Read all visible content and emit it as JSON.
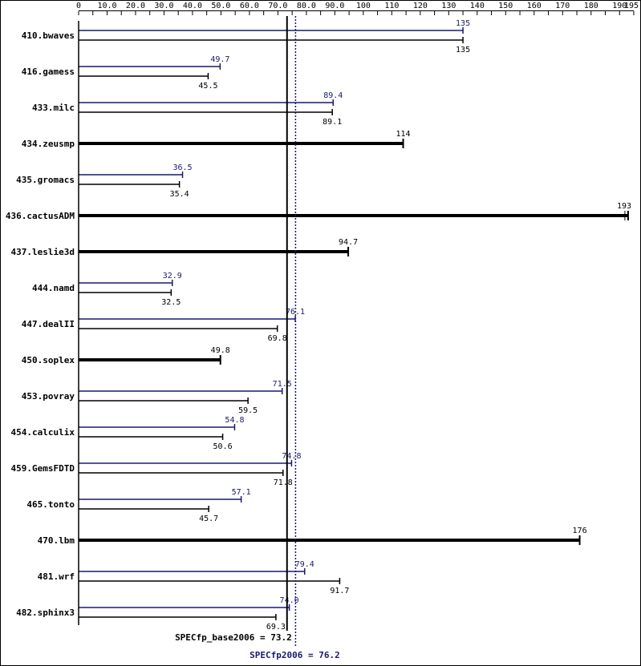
{
  "chart_data": {
    "type": "bar",
    "orientation": "horizontal",
    "xlim": [
      0,
      195
    ],
    "ticks": [
      {
        "v": 0,
        "label": "0"
      },
      {
        "v": 10,
        "label": "10.0"
      },
      {
        "v": 20,
        "label": "20.0"
      },
      {
        "v": 30,
        "label": "30.0"
      },
      {
        "v": 40,
        "label": "40.0"
      },
      {
        "v": 50,
        "label": "50.0"
      },
      {
        "v": 60,
        "label": "60.0"
      },
      {
        "v": 70,
        "label": "70.0"
      },
      {
        "v": 80,
        "label": "80.0"
      },
      {
        "v": 90,
        "label": "90.0"
      },
      {
        "v": 100,
        "label": "100"
      },
      {
        "v": 110,
        "label": "110"
      },
      {
        "v": 120,
        "label": "120"
      },
      {
        "v": 130,
        "label": "130"
      },
      {
        "v": 140,
        "label": "140"
      },
      {
        "v": 150,
        "label": "150"
      },
      {
        "v": 160,
        "label": "160"
      },
      {
        "v": 170,
        "label": "170"
      },
      {
        "v": 180,
        "label": "180"
      },
      {
        "v": 190,
        "label": "190"
      },
      {
        "v": 195,
        "label": "195"
      }
    ],
    "benchmarks": [
      {
        "name": "410.bwaves",
        "peak": 135,
        "peak_label": "135",
        "base": 135,
        "base_label": "135"
      },
      {
        "name": "416.gamess",
        "peak": 49.7,
        "peak_label": "49.7",
        "base": 45.5,
        "base_label": "45.5"
      },
      {
        "name": "433.milc",
        "peak": 89.4,
        "peak_label": "89.4",
        "base": 89.1,
        "base_label": "89.1"
      },
      {
        "name": "434.zeusmp",
        "peak": null,
        "peak_label": "",
        "base": 114,
        "base_label": "114"
      },
      {
        "name": "435.gromacs",
        "peak": 36.5,
        "peak_label": "36.5",
        "base": 35.4,
        "base_label": "35.4"
      },
      {
        "name": "436.cactusADM",
        "peak": null,
        "peak_label": "",
        "base": 193,
        "base_label": "193"
      },
      {
        "name": "437.leslie3d",
        "peak": null,
        "peak_label": "",
        "base": 94.7,
        "base_label": "94.7"
      },
      {
        "name": "444.namd",
        "peak": 32.9,
        "peak_label": "32.9",
        "base": 32.5,
        "base_label": "32.5"
      },
      {
        "name": "447.dealII",
        "peak": 76.1,
        "peak_label": "76.1",
        "base": 69.8,
        "base_label": "69.8"
      },
      {
        "name": "450.soplex",
        "peak": null,
        "peak_label": "",
        "base": 49.8,
        "base_label": "49.8"
      },
      {
        "name": "453.povray",
        "peak": 71.5,
        "peak_label": "71.5",
        "base": 59.5,
        "base_label": "59.5"
      },
      {
        "name": "454.calculix",
        "peak": 54.8,
        "peak_label": "54.8",
        "base": 50.6,
        "base_label": "50.6"
      },
      {
        "name": "459.GemsFDTD",
        "peak": 74.8,
        "peak_label": "74.8",
        "base": 71.8,
        "base_label": "71.8"
      },
      {
        "name": "465.tonto",
        "peak": 57.1,
        "peak_label": "57.1",
        "base": 45.7,
        "base_label": "45.7"
      },
      {
        "name": "470.lbm",
        "peak": null,
        "peak_label": "",
        "base": 176,
        "base_label": "176"
      },
      {
        "name": "481.wrf",
        "peak": 79.4,
        "peak_label": "79.4",
        "base": 91.7,
        "base_label": "91.7"
      },
      {
        "name": "482.sphinx3",
        "peak": 74.0,
        "peak_label": "74.0",
        "base": 69.3,
        "base_label": "69.3"
      }
    ],
    "base_summary": {
      "value": 73.2,
      "label": "SPECfp_base2006 = 73.2"
    },
    "peak_summary": {
      "value": 76.2,
      "label": "SPECfp2006 = 76.2"
    },
    "colors": {
      "base": "#000000",
      "peak": "#191970",
      "border": "#000000",
      "background": "#ffffff"
    }
  }
}
